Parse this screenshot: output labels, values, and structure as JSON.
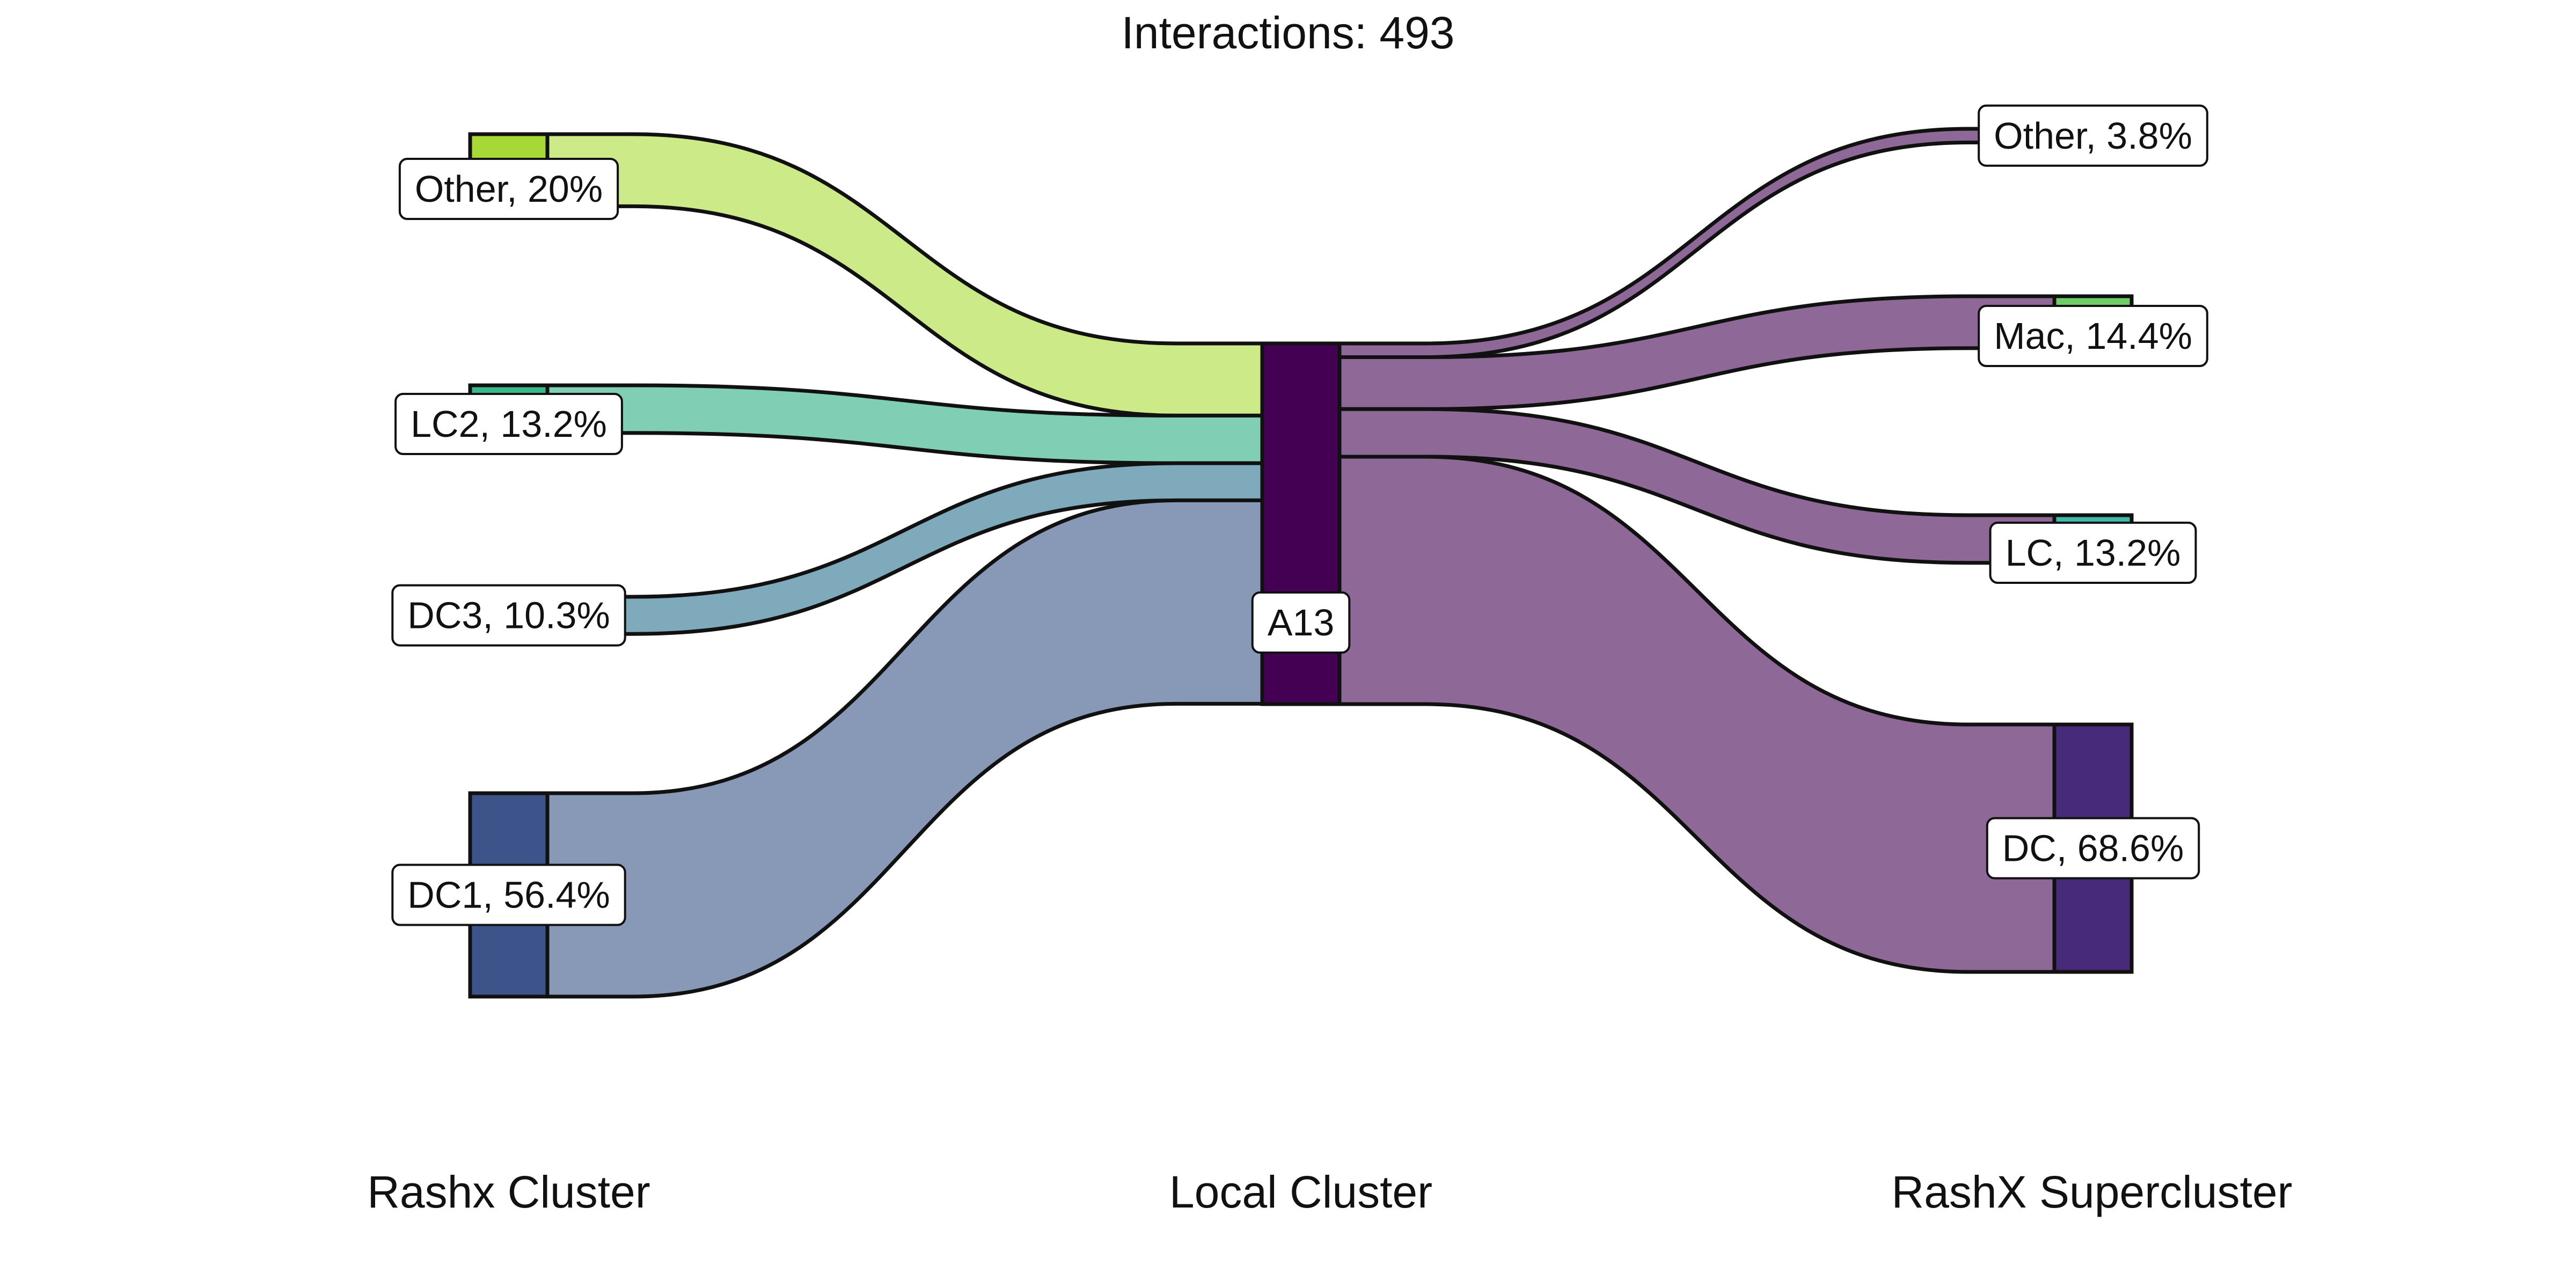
{
  "chart_data": {
    "type": "sankey",
    "title": "Interactions: 493",
    "columns": [
      {
        "name": "Rashx Cluster",
        "nodes": [
          {
            "id": "left-other",
            "name": "Other",
            "label": "Other, 20%",
            "percent": 20,
            "color": "#a6d936",
            "flow_color": "#cdea88"
          },
          {
            "id": "left-lc2",
            "name": "LC2",
            "label": "LC2, 13.2%",
            "percent": 13.2,
            "color": "#38b98a",
            "flow_color": "#80cfb4"
          },
          {
            "id": "left-dc3",
            "name": "DC3",
            "label": "DC3, 10.3%",
            "percent": 10.3,
            "color": "#2f8ea0",
            "flow_color": "#7eaabb"
          },
          {
            "id": "left-dc1",
            "name": "DC1",
            "label": "DC1, 56.4%",
            "percent": 56.4,
            "color": "#3c548a",
            "flow_color": "#8899b8"
          }
        ]
      },
      {
        "name": "Local Cluster",
        "nodes": [
          {
            "id": "mid-a13",
            "name": "A13",
            "label": "A13",
            "percent": 100,
            "color": "#440154",
            "flow_color": "#8e6897"
          }
        ]
      },
      {
        "name": "RashX Supercluster",
        "nodes": [
          {
            "id": "right-other",
            "name": "Other",
            "label": "Other, 3.8%",
            "percent": 3.8,
            "color": "#8e6897"
          },
          {
            "id": "right-mac",
            "name": "Mac",
            "label": "Mac, 14.4%",
            "percent": 14.4,
            "color": "#6ecd66"
          },
          {
            "id": "right-lc",
            "name": "LC",
            "label": "LC, 13.2%",
            "percent": 13.2,
            "color": "#3fb9a8"
          },
          {
            "id": "right-dc",
            "name": "DC",
            "label": "DC, 68.6%",
            "percent": 68.6,
            "color": "#482a7a"
          }
        ]
      }
    ],
    "flows": [
      {
        "source": "left-other",
        "target": "mid-a13",
        "percent": 20
      },
      {
        "source": "left-lc2",
        "target": "mid-a13",
        "percent": 13.2
      },
      {
        "source": "left-dc3",
        "target": "mid-a13",
        "percent": 10.3
      },
      {
        "source": "left-dc1",
        "target": "mid-a13",
        "percent": 56.4
      },
      {
        "source": "mid-a13",
        "target": "right-other",
        "percent": 3.8
      },
      {
        "source": "mid-a13",
        "target": "right-mac",
        "percent": 14.4
      },
      {
        "source": "mid-a13",
        "target": "right-lc",
        "percent": 13.2
      },
      {
        "source": "mid-a13",
        "target": "right-dc",
        "percent": 68.6
      }
    ]
  }
}
